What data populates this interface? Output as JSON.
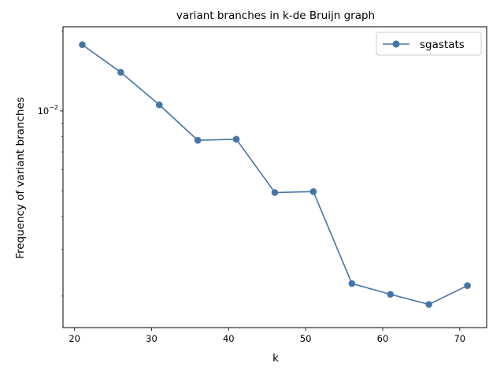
{
  "chart_data": {
    "type": "line",
    "title": "variant branches in k-de Bruijn graph",
    "xlabel": "k",
    "ylabel": "Frequency of variant branches",
    "yscale": "log",
    "xlim": [
      18.5,
      73.5
    ],
    "ylim": [
      0.00152,
      0.0208
    ],
    "x_ticks": [
      20,
      30,
      40,
      50,
      60,
      70
    ],
    "y_ticks": [
      {
        "value": 0.01,
        "base": "10",
        "exponent": "−2"
      }
    ],
    "grid": false,
    "legend_position": "top-right",
    "series": [
      {
        "name": "sgastats",
        "color": "#4575a8",
        "marker": "circle",
        "x": [
          21,
          26,
          31,
          36,
          41,
          46,
          51,
          56,
          61,
          66,
          71
        ],
        "y": [
          0.0178,
          0.014,
          0.01055,
          0.00775,
          0.00782,
          0.00492,
          0.00496,
          0.00223,
          0.00203,
          0.00186,
          0.00219
        ]
      }
    ]
  }
}
